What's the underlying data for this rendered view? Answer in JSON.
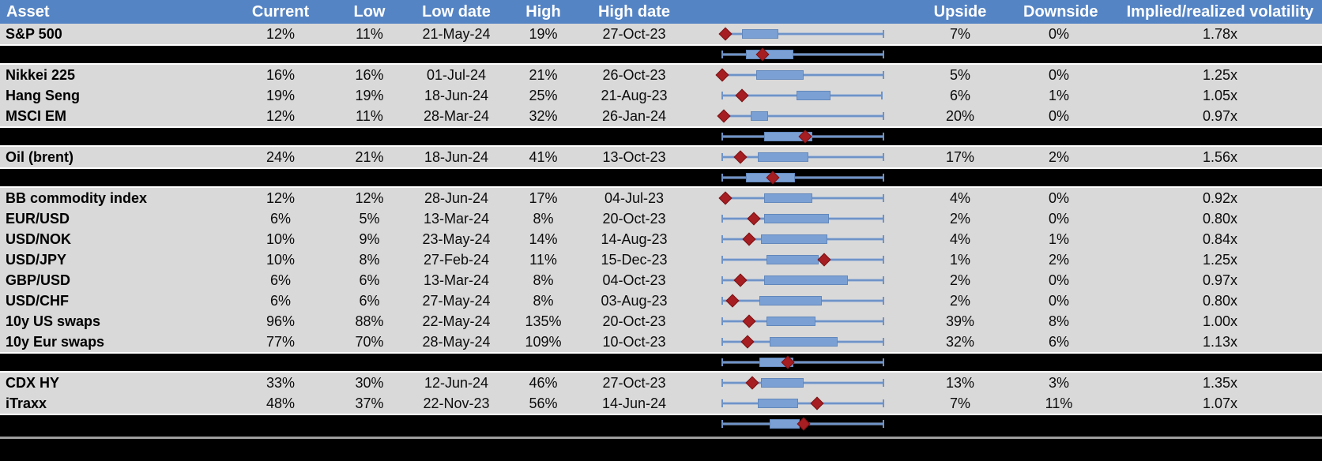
{
  "header": {
    "columns": [
      {
        "label": "Asset"
      },
      {
        "label": "Current"
      },
      {
        "label": "Low"
      },
      {
        "label": "Low date"
      },
      {
        "label": "High"
      },
      {
        "label": "High date"
      },
      {
        "label": ""
      },
      {
        "label": "Upside"
      },
      {
        "label": "Downside"
      },
      {
        "label": "Implied/realized volatility"
      }
    ]
  },
  "chart_data": {
    "type": "table",
    "title": "",
    "description": "Implied volatility levels by asset. Each row has an embedded horizontal box-and-whisker range chart: whiskers span the low-high range, the blue box marks the interquartile range and the dark-red diamond marks the current level. Black rows are group-summary range charts with no text. Box geometry values are percent positions along the plot track (0 = left end, 100 = right end); no axis labels are shown in the image.",
    "rows": [
      {
        "type": "asset",
        "asset": "S&P 500",
        "current": "12%",
        "low": "11%",
        "low_date": "21-May-24",
        "high": "19%",
        "high_date": "27-Oct-23",
        "upside": "7%",
        "downside": "0%",
        "vol_ratio": "1.78x",
        "box": {
          "whisker_start": 6,
          "box_start": 16,
          "box_end": 37,
          "diamond": 6,
          "whisker_end": 99,
          "left_cap": false
        }
      },
      {
        "type": "summary",
        "box": {
          "whisker_start": 4,
          "box_start": 18,
          "box_end": 46,
          "diamond": 28,
          "whisker_end": 99,
          "left_cap": true
        }
      },
      {
        "type": "asset",
        "asset": "Nikkei 225",
        "current": "16%",
        "low": "16%",
        "low_date": "01-Jul-24",
        "high": "21%",
        "high_date": "26-Oct-23",
        "upside": "5%",
        "downside": "0%",
        "vol_ratio": "1.25x",
        "box": {
          "whisker_start": 4,
          "box_start": 24,
          "box_end": 52,
          "diamond": 4,
          "whisker_end": 99,
          "left_cap": false
        }
      },
      {
        "type": "asset",
        "asset": "Hang Seng",
        "current": "19%",
        "low": "19%",
        "low_date": "18-Jun-24",
        "high": "25%",
        "high_date": "21-Aug-23",
        "upside": "6%",
        "downside": "1%",
        "vol_ratio": "1.05x",
        "box": {
          "whisker_start": 4,
          "box_start": 48,
          "box_end": 68,
          "diamond": 16,
          "whisker_end": 98,
          "left_cap": true
        }
      },
      {
        "type": "asset",
        "asset": "MSCI EM",
        "current": "12%",
        "low": "11%",
        "low_date": "28-Mar-24",
        "high": "32%",
        "high_date": "26-Jan-24",
        "upside": "20%",
        "downside": "0%",
        "vol_ratio": "0.97x",
        "box": {
          "whisker_start": 5,
          "box_start": 21,
          "box_end": 31,
          "diamond": 5,
          "whisker_end": 99,
          "left_cap": false
        }
      },
      {
        "type": "summary",
        "box": {
          "whisker_start": 4,
          "box_start": 29,
          "box_end": 57,
          "diamond": 53,
          "whisker_end": 99,
          "left_cap": true
        }
      },
      {
        "type": "asset",
        "asset": "Oil (brent)",
        "current": "24%",
        "low": "21%",
        "low_date": "18-Jun-24",
        "high": "41%",
        "high_date": "13-Oct-23",
        "upside": "17%",
        "downside": "2%",
        "vol_ratio": "1.56x",
        "box": {
          "whisker_start": 4,
          "box_start": 25,
          "box_end": 55,
          "diamond": 15,
          "whisker_end": 99,
          "left_cap": true
        }
      },
      {
        "type": "summary",
        "box": {
          "whisker_start": 4,
          "box_start": 18,
          "box_end": 47,
          "diamond": 34,
          "whisker_end": 99,
          "left_cap": true
        }
      },
      {
        "type": "asset",
        "asset": "BB commodity index",
        "current": "12%",
        "low": "12%",
        "low_date": "28-Jun-24",
        "high": "17%",
        "high_date": "04-Jul-23",
        "upside": "4%",
        "downside": "0%",
        "vol_ratio": "0.92x",
        "box": {
          "whisker_start": 6,
          "box_start": 29,
          "box_end": 57,
          "diamond": 6,
          "whisker_end": 99,
          "left_cap": false
        }
      },
      {
        "type": "asset",
        "asset": "EUR/USD",
        "current": "6%",
        "low": "5%",
        "low_date": "13-Mar-24",
        "high": "8%",
        "high_date": "20-Oct-23",
        "upside": "2%",
        "downside": "0%",
        "vol_ratio": "0.80x",
        "box": {
          "whisker_start": 4,
          "box_start": 29,
          "box_end": 67,
          "diamond": 23,
          "whisker_end": 99,
          "left_cap": true
        }
      },
      {
        "type": "asset",
        "asset": "USD/NOK",
        "current": "10%",
        "low": "9%",
        "low_date": "23-May-24",
        "high": "14%",
        "high_date": "14-Aug-23",
        "upside": "4%",
        "downside": "1%",
        "vol_ratio": "0.84x",
        "box": {
          "whisker_start": 4,
          "box_start": 27,
          "box_end": 66,
          "diamond": 20,
          "whisker_end": 99,
          "left_cap": true
        }
      },
      {
        "type": "asset",
        "asset": "USD/JPY",
        "current": "10%",
        "low": "8%",
        "low_date": "27-Feb-24",
        "high": "11%",
        "high_date": "15-Dec-23",
        "upside": "1%",
        "downside": "2%",
        "vol_ratio": "1.25x",
        "box": {
          "whisker_start": 4,
          "box_start": 30,
          "box_end": 61,
          "diamond": 64,
          "whisker_end": 99,
          "left_cap": true
        }
      },
      {
        "type": "asset",
        "asset": "GBP/USD",
        "current": "6%",
        "low": "6%",
        "low_date": "13-Mar-24",
        "high": "8%",
        "high_date": "04-Oct-23",
        "upside": "2%",
        "downside": "0%",
        "vol_ratio": "0.97x",
        "box": {
          "whisker_start": 4,
          "box_start": 29,
          "box_end": 78,
          "diamond": 15,
          "whisker_end": 99,
          "left_cap": true
        }
      },
      {
        "type": "asset",
        "asset": "USD/CHF",
        "current": "6%",
        "low": "6%",
        "low_date": "27-May-24",
        "high": "8%",
        "high_date": "03-Aug-23",
        "upside": "2%",
        "downside": "0%",
        "vol_ratio": "0.80x",
        "box": {
          "whisker_start": 4,
          "box_start": 26,
          "box_end": 63,
          "diamond": 10,
          "whisker_end": 99,
          "left_cap": true
        }
      },
      {
        "type": "asset",
        "asset": "10y US swaps",
        "current": "96%",
        "low": "88%",
        "low_date": "22-May-24",
        "high": "135%",
        "high_date": "20-Oct-23",
        "upside": "39%",
        "downside": "8%",
        "vol_ratio": "1.00x",
        "box": {
          "whisker_start": 4,
          "box_start": 30,
          "box_end": 59,
          "diamond": 20,
          "whisker_end": 99,
          "left_cap": true
        }
      },
      {
        "type": "asset",
        "asset": "10y Eur swaps",
        "current": "77%",
        "low": "70%",
        "low_date": "28-May-24",
        "high": "109%",
        "high_date": "10-Oct-23",
        "upside": "32%",
        "downside": "6%",
        "vol_ratio": "1.13x",
        "box": {
          "whisker_start": 4,
          "box_start": 32,
          "box_end": 72,
          "diamond": 19,
          "whisker_end": 99,
          "left_cap": true
        }
      },
      {
        "type": "summary",
        "box": {
          "whisker_start": 4,
          "box_start": 26,
          "box_end": 46,
          "diamond": 43,
          "whisker_end": 99,
          "left_cap": true
        }
      },
      {
        "type": "asset",
        "asset": "CDX HY",
        "current": "33%",
        "low": "30%",
        "low_date": "12-Jun-24",
        "high": "46%",
        "high_date": "27-Oct-23",
        "upside": "13%",
        "downside": "3%",
        "vol_ratio": "1.35x",
        "box": {
          "whisker_start": 4,
          "box_start": 27,
          "box_end": 52,
          "diamond": 22,
          "whisker_end": 99,
          "left_cap": true
        }
      },
      {
        "type": "asset",
        "asset": "iTraxx",
        "current": "48%",
        "low": "37%",
        "low_date": "22-Nov-23",
        "high": "56%",
        "high_date": "14-Jun-24",
        "upside": "7%",
        "downside": "11%",
        "vol_ratio": "1.07x",
        "box": {
          "whisker_start": 4,
          "box_start": 25,
          "box_end": 49,
          "diamond": 60,
          "whisker_end": 99,
          "left_cap": true
        }
      },
      {
        "type": "summary",
        "box": {
          "whisker_start": 4,
          "box_start": 32,
          "box_end": 50,
          "diamond": 52,
          "whisker_end": 99,
          "left_cap": true
        }
      }
    ]
  },
  "colors": {
    "header_bg": "#5584C4",
    "row_bg": "#D9D9D9",
    "summary_bg": "#000000",
    "box_fill": "#7BA0D4",
    "whisker": "#6E93C8",
    "diamond": "#A61E22",
    "separator": "#9E9E9E"
  }
}
